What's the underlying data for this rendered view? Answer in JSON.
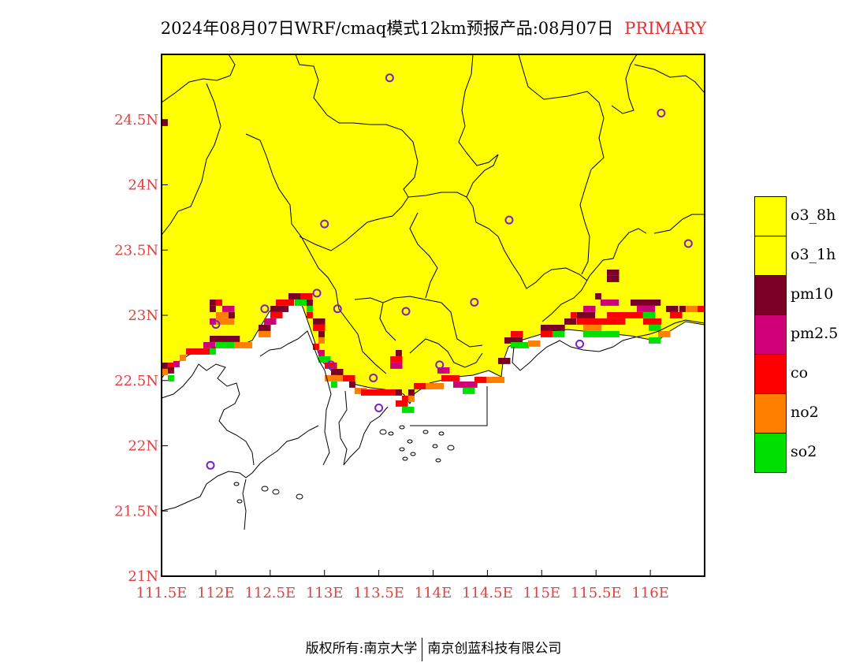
{
  "title": {
    "text": "2024年08月07日WRF/cmaq模式12km预报产品:08月07日",
    "highlight": "PRIMARY",
    "highlight_color": "#e03030"
  },
  "map": {
    "projection": "lon-lat",
    "lon_range": [
      111.5,
      116.5
    ],
    "lat_range": [
      21.0,
      25.0
    ],
    "background_pollutant": "o3_8h",
    "x_ticks": [
      "111.5E",
      "112E",
      "112.5E",
      "113E",
      "113.5E",
      "114E",
      "114.5E",
      "115E",
      "115.5E",
      "116E"
    ],
    "y_ticks": [
      "21N",
      "21.5N",
      "22N",
      "22.5N",
      "23N",
      "23.5N",
      "24N",
      "24.5N"
    ],
    "tick_color": "#e04040",
    "stations_color": "#8020c0",
    "stations": [
      {
        "lon": 113.6,
        "lat": 24.82
      },
      {
        "lon": 116.1,
        "lat": 24.55
      },
      {
        "lon": 113.0,
        "lat": 23.7
      },
      {
        "lon": 114.7,
        "lat": 23.73
      },
      {
        "lon": 116.35,
        "lat": 23.55
      },
      {
        "lon": 112.93,
        "lat": 23.17
      },
      {
        "lon": 112.45,
        "lat": 23.05
      },
      {
        "lon": 113.12,
        "lat": 23.05
      },
      {
        "lon": 113.75,
        "lat": 23.03
      },
      {
        "lon": 114.38,
        "lat": 23.1
      },
      {
        "lon": 112.0,
        "lat": 22.93
      },
      {
        "lon": 115.35,
        "lat": 22.78
      },
      {
        "lon": 113.06,
        "lat": 22.62
      },
      {
        "lon": 113.45,
        "lat": 22.52
      },
      {
        "lon": 114.06,
        "lat": 22.62
      },
      {
        "lon": 113.5,
        "lat": 22.29
      },
      {
        "lon": 111.95,
        "lat": 21.85
      }
    ]
  },
  "legend": [
    {
      "label": "o3_8h",
      "color": "#ffff00"
    },
    {
      "label": "o3_1h",
      "color": "#ffff00"
    },
    {
      "label": "pm10",
      "color": "#7a0026"
    },
    {
      "label": "pm2.5",
      "color": "#d00078"
    },
    {
      "label": "co",
      "color": "#ff0000"
    },
    {
      "label": "no2",
      "color": "#ff8000"
    },
    {
      "label": "so2",
      "color": "#00e000"
    }
  ],
  "footer": {
    "left": "版权所有:南京大学",
    "right": "南京创蓝科技有限公司"
  }
}
